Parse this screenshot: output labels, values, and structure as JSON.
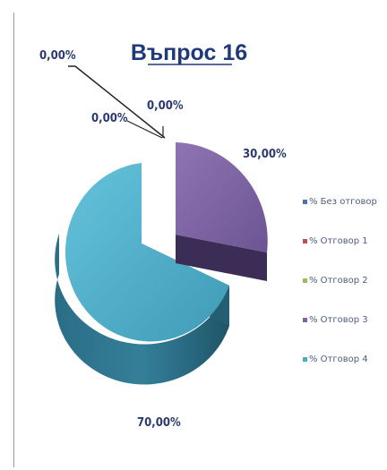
{
  "chart_data": {
    "type": "pie",
    "title": "Въпрос 16",
    "three_d": true,
    "exploded": true,
    "legend_position": "right",
    "series": [
      {
        "name": "% Без отговор",
        "value": 0,
        "label": "0,00%",
        "color": "#4a74b0"
      },
      {
        "name": "% Отговор 1",
        "value": 0,
        "label": "0,00%",
        "color": "#c0504d"
      },
      {
        "name": "% Отговор 2",
        "value": 0,
        "label": "0,00%",
        "color": "#9bbb59"
      },
      {
        "name": "% Отговор 3",
        "value": 30,
        "label": "30,00%",
        "color": "#8064a2"
      },
      {
        "name": "% Отговор 4",
        "value": 70,
        "label": "70,00%",
        "color": "#4bacc6"
      }
    ]
  }
}
